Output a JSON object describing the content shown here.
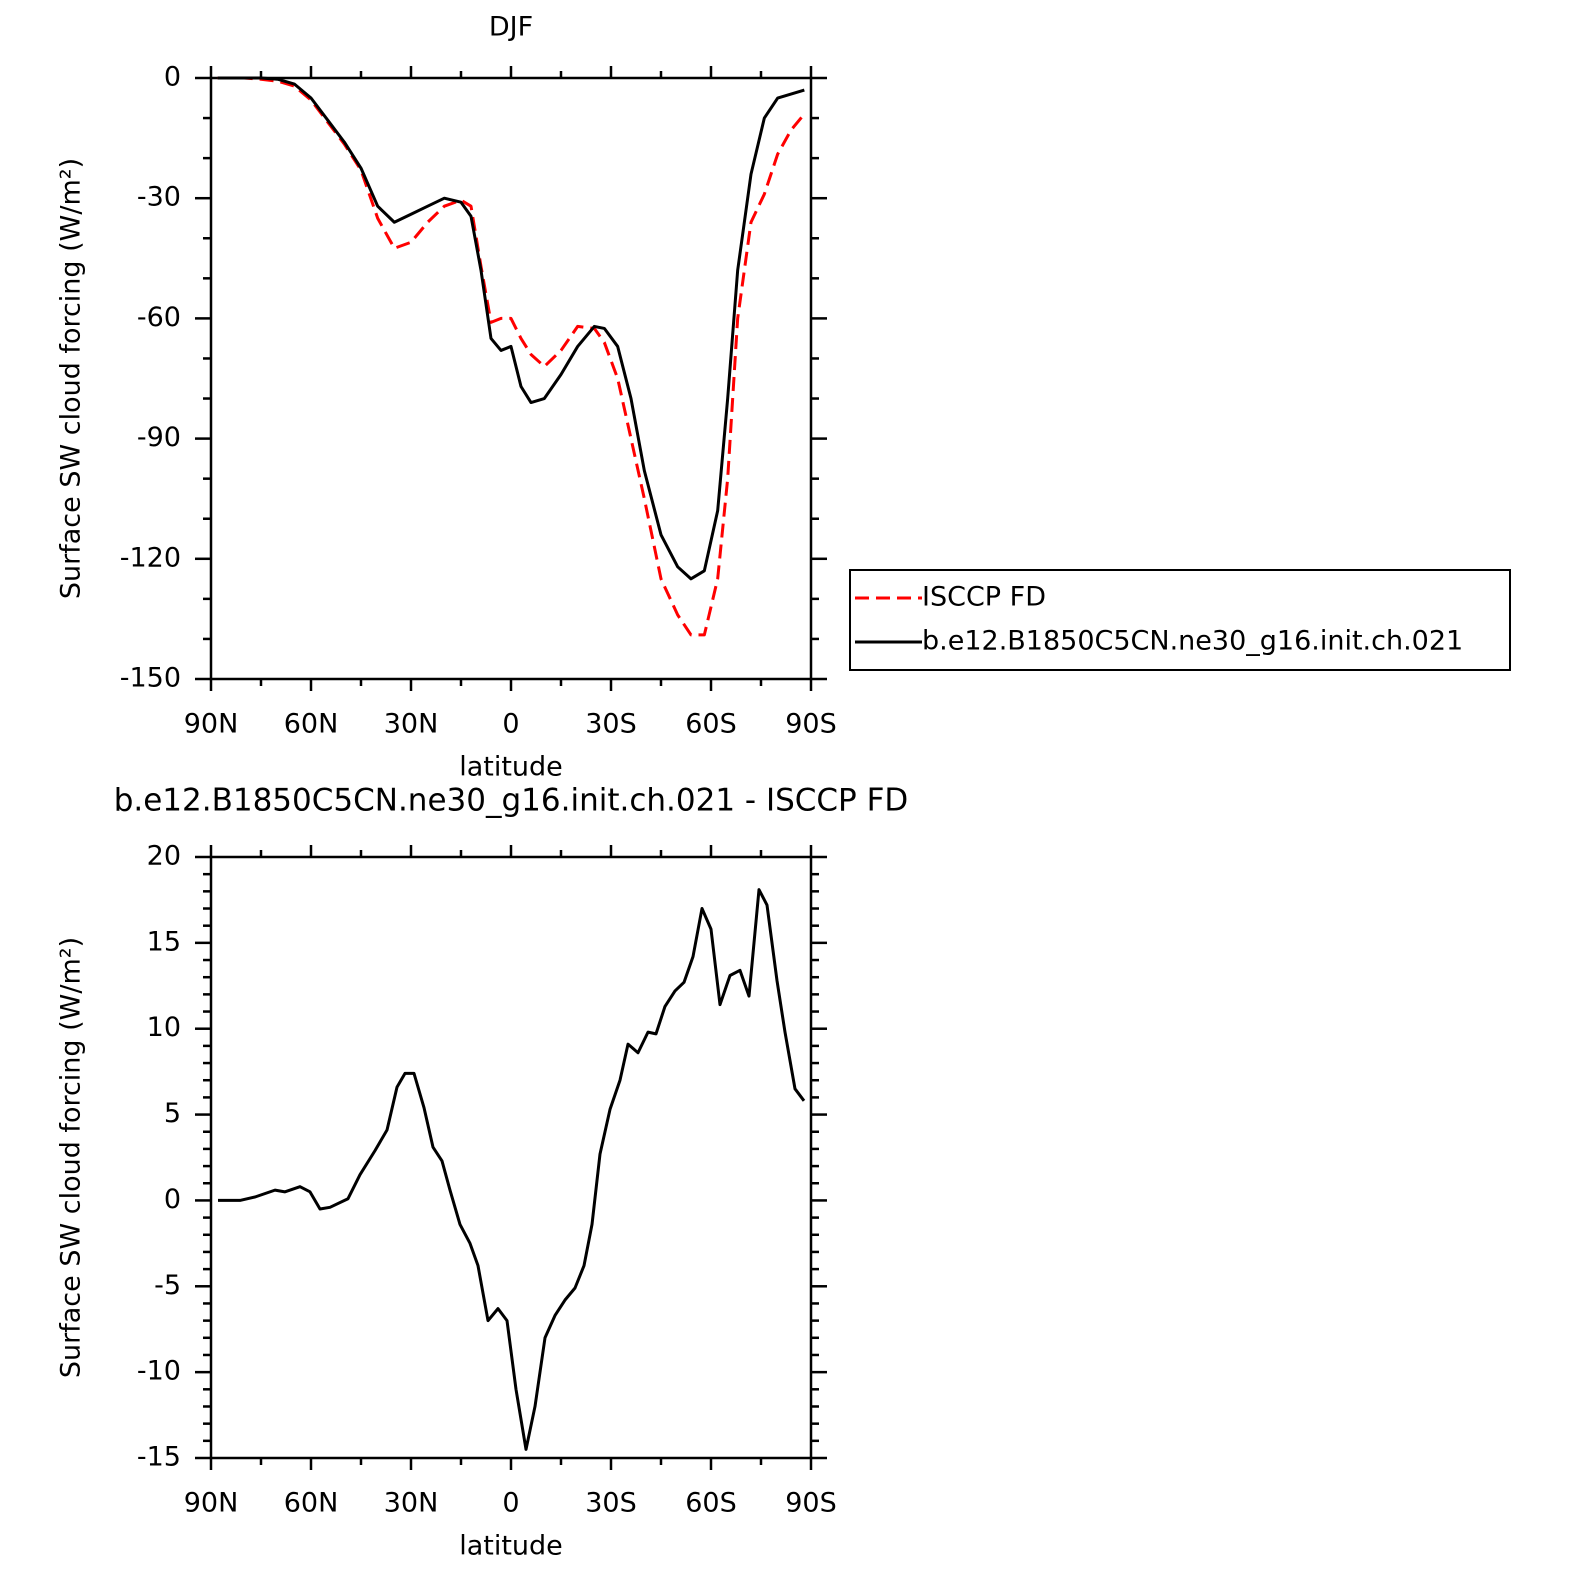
{
  "chart_data": [
    {
      "type": "line",
      "title": "DJF",
      "x_label": "latitude",
      "y_label": "Surface SW cloud forcing (W/m²)",
      "x": [
        88,
        85,
        80,
        75,
        70,
        65,
        60,
        55,
        50,
        45,
        40,
        35,
        30,
        25,
        20,
        15,
        12,
        9,
        6,
        3,
        0,
        -3,
        -6,
        -10,
        -15,
        -20,
        -25,
        -28,
        -32,
        -36,
        -40,
        -45,
        -50,
        -54,
        -58,
        -62,
        -65,
        -68,
        -72,
        -76,
        -80,
        -84,
        -88
      ],
      "series": [
        {
          "name": "ISCCP FD",
          "color": "#ff0000",
          "linestyle": "dashed",
          "values": [
            0,
            0,
            0,
            -0.3,
            -0.8,
            -2,
            -5.5,
            -11,
            -16.5,
            -23,
            -35,
            -42.5,
            -41,
            -36,
            -32,
            -30.5,
            -32,
            -47,
            -61,
            -60,
            -60,
            -65,
            -69,
            -72,
            -68,
            -62,
            -62.5,
            -66,
            -75,
            -90,
            -105,
            -125,
            -134,
            -139,
            -139,
            -125,
            -100,
            -60,
            -36,
            -29,
            -19,
            -13,
            -9
          ]
        },
        {
          "name": "b.e12.B1850C5CN.ne30_g16.init.ch.021",
          "color": "#000000",
          "linestyle": "solid",
          "values": [
            0,
            0,
            0,
            0,
            -0.3,
            -1.5,
            -5,
            -10.5,
            -16,
            -22.5,
            -32,
            -36,
            -34,
            -32,
            -30,
            -31,
            -34.5,
            -48,
            -65,
            -68,
            -67,
            -77,
            -81,
            -80,
            -74,
            -67,
            -62,
            -62.5,
            -67,
            -80,
            -98,
            -114,
            -122,
            -125,
            -123,
            -108,
            -80,
            -48,
            -24,
            -10,
            -5,
            -4,
            -3
          ]
        }
      ],
      "xlim": [
        90,
        -90
      ],
      "xticks": [
        {
          "value": 90,
          "label": "90N"
        },
        {
          "value": 60,
          "label": "60N"
        },
        {
          "value": 30,
          "label": "30N"
        },
        0,
        {
          "value": -30,
          "label": "30S"
        },
        {
          "value": -60,
          "label": "60S"
        },
        {
          "value": -90,
          "label": "90S"
        }
      ],
      "ylim": [
        -150,
        0
      ],
      "yticks": [
        -150,
        -120,
        -90,
        -60,
        -30,
        0
      ],
      "legend": "right"
    },
    {
      "type": "line",
      "title": "b.e12.B1850C5CN.ne30_g16.init.ch.021 - ISCCP FD",
      "x_label": "latitude",
      "y_label": "Surface SW cloud forcing (W/m²)",
      "x": [
        87.9,
        81.3,
        76.8,
        70.8,
        67.8,
        63.3,
        60.3,
        57.3,
        54.3,
        48.9,
        45.3,
        40.8,
        37.2,
        34.2,
        31.8,
        29.1,
        26.1,
        23.4,
        20.7,
        18.3,
        15.3,
        12.3,
        9.9,
        6.9,
        3.9,
        1.2,
        -1.5,
        -4.5,
        -7.2,
        -10.2,
        -13.2,
        -16.2,
        -19.2,
        -21.9,
        -24.3,
        -26.7,
        -29.7,
        -32.7,
        -35.1,
        -38.1,
        -41.1,
        -43.5,
        -46.2,
        -49.2,
        -51.9,
        -54.6,
        -57.3,
        -60,
        -62.7,
        -65.7,
        -68.7,
        -71.4,
        -74.4,
        -76.8,
        -79.8,
        -82.2,
        -85.2,
        -87.9
      ],
      "values": [
        0,
        0,
        0.2,
        0.6,
        0.5,
        0.8,
        0.5,
        -0.5,
        -0.4,
        0.1,
        1.5,
        2.9,
        4.1,
        6.6,
        7.4,
        7.4,
        5.4,
        3.1,
        2.3,
        0.6,
        -1.4,
        -2.5,
        -3.8,
        -7,
        -6.3,
        -7,
        -11,
        -14.5,
        -12,
        -8,
        -6.7,
        -5.8,
        -5.1,
        -3.8,
        -1.4,
        2.7,
        5.3,
        7,
        9.1,
        8.6,
        9.8,
        9.7,
        11.3,
        12.2,
        12.7,
        14.2,
        17,
        15.8,
        11.4,
        13.1,
        13.4,
        11.9,
        18.1,
        17.2,
        12.8,
        9.8,
        6.5,
        5.8
      ],
      "color": "#000000",
      "xlim": [
        90,
        -90
      ],
      "xticks": [
        {
          "value": 90,
          "label": "90N"
        },
        {
          "value": 60,
          "label": "60N"
        },
        {
          "value": 30,
          "label": "30N"
        },
        0,
        {
          "value": -30,
          "label": "30S"
        },
        {
          "value": -60,
          "label": "60S"
        },
        {
          "value": -90,
          "label": "90S"
        }
      ],
      "ylim": [
        -15,
        20
      ],
      "yticks": [
        -15,
        -10,
        -5,
        0,
        5,
        10,
        15,
        20
      ]
    }
  ]
}
